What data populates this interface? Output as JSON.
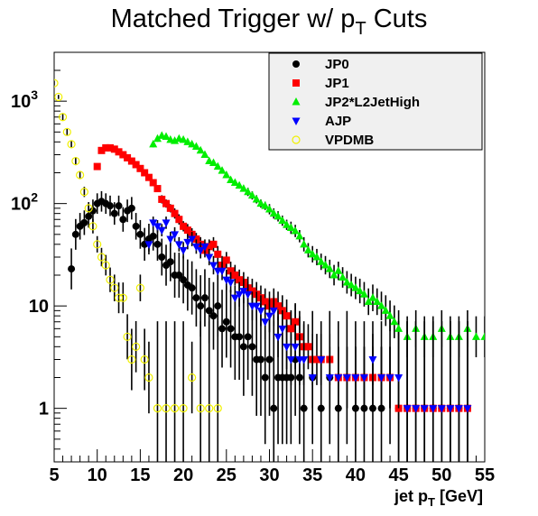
{
  "chart_data": {
    "type": "scatter",
    "title": "Matched Trigger w/ p",
    "title_sub": "T",
    "title_suffix": " Cuts",
    "xlabel": "jet p",
    "xlabel_sub": "T",
    "xlabel_suffix": " [GeV]",
    "ylabel": "",
    "xlim": [
      5,
      55
    ],
    "ylim": [
      0.3,
      3000
    ],
    "yscale": "log",
    "grid": false,
    "legend_position": "top-right",
    "x_ticks": [
      5,
      10,
      15,
      20,
      25,
      30,
      35,
      40,
      45,
      50,
      55
    ],
    "y_ticks": [
      {
        "value": 1,
        "base": "1",
        "exp": ""
      },
      {
        "value": 10,
        "base": "10",
        "exp": ""
      },
      {
        "value": 100,
        "base": "10",
        "exp": "2"
      },
      {
        "value": 1000,
        "base": "10",
        "exp": "3"
      }
    ],
    "series": [
      {
        "name": "JP0",
        "color": "#000000",
        "marker": "circle",
        "x": [
          7,
          7.5,
          8,
          8.5,
          9,
          9.5,
          10,
          10.5,
          11,
          11.5,
          12,
          12.5,
          13,
          13.5,
          14,
          14.5,
          15,
          15.5,
          16,
          16.5,
          17,
          17.5,
          18,
          18.5,
          19,
          19.5,
          20,
          20.5,
          21,
          21.5,
          22,
          22.5,
          23,
          23.5,
          24,
          24.5,
          25,
          25.5,
          26,
          26.5,
          27,
          27.5,
          28,
          28.5,
          29,
          29.5,
          30,
          30.5,
          31,
          31.5,
          32,
          32.5,
          33,
          33.5,
          34,
          35,
          36,
          37,
          38,
          39,
          40,
          41,
          42,
          43,
          44,
          45,
          46,
          47,
          48,
          49,
          50,
          51,
          52,
          53
        ],
        "y": [
          23,
          50,
          60,
          65,
          75,
          85,
          100,
          105,
          100,
          95,
          80,
          95,
          70,
          85,
          90,
          60,
          50,
          40,
          45,
          48,
          40,
          30,
          25,
          27,
          20,
          20,
          18,
          16,
          15,
          12,
          10,
          12,
          9,
          8,
          10,
          6,
          7,
          6,
          5,
          5,
          4,
          5,
          4,
          3,
          3,
          2,
          3,
          1,
          2,
          2,
          2,
          2,
          3,
          2,
          1,
          2,
          1,
          2,
          1,
          2,
          1,
          1,
          1,
          1,
          2,
          1,
          1,
          1,
          1,
          1,
          1,
          1,
          1,
          1
        ],
        "err": [
          0.2,
          0.15,
          0.13,
          0.12,
          0.11,
          0.11,
          0.1,
          0.1,
          0.1,
          0.1,
          0.11,
          0.1,
          0.12,
          0.11,
          0.11,
          0.13,
          0.14,
          0.16,
          0.15,
          0.14,
          0.16,
          0.18,
          0.2,
          0.19,
          0.22,
          0.22,
          0.23,
          0.25,
          0.26,
          0.28,
          0.3,
          0.28,
          0.32,
          0.33,
          0.3,
          0.38,
          0.35,
          0.38,
          0.42,
          0.42,
          0.48,
          0.42,
          0.48,
          0.55,
          0.55,
          0.65,
          0.55,
          0.85,
          0.65,
          0.65,
          0.65,
          0.65,
          0.55,
          0.65,
          0.85,
          0.65,
          0.85,
          0.65,
          0.85,
          0.65,
          0.85,
          0.85,
          0.85,
          0.85,
          0.65,
          0.85,
          0.85,
          0.85,
          0.85,
          0.85,
          0.85,
          0.85,
          0.85,
          0.85
        ]
      },
      {
        "name": "JP1",
        "color": "#ff0000",
        "marker": "square",
        "x": [
          10,
          10.5,
          11,
          11.5,
          12,
          12.5,
          13,
          13.5,
          14,
          14.5,
          15,
          15.5,
          16,
          16.5,
          17,
          17.5,
          18,
          18.5,
          19,
          19.5,
          20,
          20.5,
          21,
          21.5,
          22,
          22.5,
          23,
          23.5,
          24,
          24.5,
          25,
          25.5,
          26,
          26.5,
          27,
          27.5,
          28,
          28.5,
          29,
          29.5,
          30,
          30.5,
          31,
          31.5,
          32,
          32.5,
          33,
          33.5,
          34,
          34.5,
          35,
          35.5,
          36,
          37,
          38,
          39,
          40,
          41,
          42,
          43,
          44,
          45,
          46,
          47,
          48,
          49,
          50,
          51,
          52,
          53
        ],
        "y": [
          230,
          330,
          350,
          350,
          340,
          320,
          300,
          280,
          260,
          240,
          220,
          200,
          180,
          160,
          140,
          110,
          100,
          90,
          80,
          70,
          60,
          55,
          50,
          45,
          40,
          35,
          38,
          40,
          32,
          25,
          28,
          22,
          20,
          18,
          17,
          15,
          14,
          13,
          12,
          11,
          10,
          11,
          10,
          9,
          8,
          6,
          7,
          5,
          4,
          4,
          3,
          3,
          3,
          3,
          2,
          2,
          2,
          2,
          2,
          2,
          2,
          1,
          1,
          1,
          1,
          1,
          1,
          1,
          1,
          1
        ],
        "err": [
          0.03,
          0.02,
          0.02,
          0.02,
          0.02,
          0.02,
          0.02,
          0.02,
          0.02,
          0.03,
          0.03,
          0.03,
          0.03,
          0.03,
          0.03,
          0.04,
          0.04,
          0.04,
          0.05,
          0.05,
          0.05,
          0.06,
          0.06,
          0.06,
          0.07,
          0.07,
          0.07,
          0.07,
          0.08,
          0.09,
          0.08,
          0.09,
          0.1,
          0.1,
          0.1,
          0.11,
          0.12,
          0.12,
          0.12,
          0.13,
          0.14,
          0.13,
          0.14,
          0.15,
          0.16,
          0.18,
          0.17,
          0.2,
          0.22,
          0.22,
          0.25,
          0.25,
          0.25,
          0.25,
          0.3,
          0.3,
          0.3,
          0.3,
          0.3,
          0.3,
          0.3,
          0.85,
          0.85,
          0.85,
          0.85,
          0.85,
          0.85,
          0.85,
          0.85,
          0.85
        ]
      },
      {
        "name": "JP2*L2JetHigh",
        "color": "#00ee00",
        "marker": "triangle-up",
        "x": [
          16.5,
          17,
          17.5,
          18,
          18.5,
          19,
          19.5,
          20,
          20.5,
          21,
          21.5,
          22,
          22.5,
          23,
          23.5,
          24,
          24.5,
          25,
          25.5,
          26,
          26.5,
          27,
          27.5,
          28,
          28.5,
          29,
          29.5,
          30,
          30.5,
          31,
          31.5,
          32,
          32.5,
          33,
          33.5,
          34,
          34.5,
          35,
          35.5,
          36,
          36.5,
          37,
          37.5,
          38,
          38.5,
          39,
          39.5,
          40,
          40.5,
          41,
          41.5,
          42,
          42.5,
          43,
          43.5,
          44,
          44.5,
          45,
          46,
          47,
          48,
          49,
          50,
          51,
          52,
          53,
          54,
          55
        ],
        "y": [
          380,
          430,
          460,
          450,
          420,
          410,
          430,
          420,
          400,
          380,
          360,
          330,
          300,
          260,
          250,
          230,
          210,
          190,
          170,
          160,
          150,
          140,
          130,
          120,
          110,
          100,
          95,
          88,
          80,
          75,
          68,
          62,
          58,
          54,
          48,
          40,
          35,
          32,
          30,
          27,
          25,
          23,
          20,
          22,
          19,
          17,
          16,
          15,
          14,
          13,
          11,
          12,
          11,
          10,
          9,
          8,
          7,
          6,
          5,
          6,
          5,
          5,
          6,
          5,
          5,
          6,
          5,
          5
        ],
        "err": [
          0.03,
          0.03,
          0.02,
          0.02,
          0.02,
          0.02,
          0.02,
          0.02,
          0.02,
          0.02,
          0.02,
          0.02,
          0.02,
          0.03,
          0.03,
          0.03,
          0.03,
          0.03,
          0.03,
          0.03,
          0.03,
          0.03,
          0.04,
          0.04,
          0.04,
          0.04,
          0.04,
          0.05,
          0.05,
          0.05,
          0.05,
          0.05,
          0.06,
          0.06,
          0.06,
          0.07,
          0.07,
          0.08,
          0.08,
          0.08,
          0.09,
          0.09,
          0.1,
          0.09,
          0.1,
          0.11,
          0.11,
          0.11,
          0.12,
          0.12,
          0.13,
          0.13,
          0.13,
          0.14,
          0.15,
          0.15,
          0.16,
          0.18,
          0.2,
          0.18,
          0.2,
          0.2,
          0.18,
          0.2,
          0.2,
          0.18,
          0.2,
          0.2
        ]
      },
      {
        "name": "AJP",
        "color": "#0000ff",
        "marker": "triangle-down",
        "x": [
          16,
          16.5,
          17,
          17.5,
          18,
          18.5,
          19,
          19.5,
          20,
          20.5,
          21,
          21.5,
          22,
          22.5,
          23,
          23.5,
          24,
          24.5,
          25,
          25.5,
          26,
          26.5,
          27,
          27.5,
          28,
          28.5,
          29,
          29.5,
          30,
          30.5,
          31,
          31.5,
          32,
          32.5,
          33,
          33.5,
          34,
          35,
          36,
          37,
          38,
          39,
          40,
          41,
          42,
          43,
          44,
          45,
          46,
          47,
          48,
          49,
          50,
          51,
          52,
          53
        ],
        "y": [
          40,
          65,
          60,
          55,
          65,
          45,
          50,
          40,
          35,
          42,
          45,
          38,
          35,
          38,
          30,
          25,
          22,
          22,
          18,
          17,
          12,
          13,
          14,
          13,
          10,
          10,
          9,
          7,
          8,
          9,
          5,
          6,
          4,
          3,
          4,
          3,
          3,
          2,
          3,
          2,
          2,
          2,
          2,
          2,
          3,
          2,
          2,
          2,
          1,
          1,
          1,
          1,
          1,
          1,
          1,
          1
        ],
        "err": [
          0.07,
          0.06,
          0.06,
          0.06,
          0.06,
          0.07,
          0.07,
          0.07,
          0.08,
          0.07,
          0.07,
          0.07,
          0.08,
          0.07,
          0.08,
          0.09,
          0.09,
          0.09,
          0.1,
          0.1,
          0.12,
          0.12,
          0.12,
          0.12,
          0.14,
          0.14,
          0.15,
          0.17,
          0.16,
          0.15,
          0.2,
          0.18,
          0.22,
          0.25,
          0.22,
          0.25,
          0.25,
          0.3,
          0.25,
          0.3,
          0.3,
          0.3,
          0.3,
          0.3,
          0.25,
          0.3,
          0.3,
          0.3,
          0.85,
          0.85,
          0.85,
          0.85,
          0.85,
          0.85,
          0.85,
          0.85
        ]
      },
      {
        "name": "VPDMB",
        "color": "#f0f000",
        "marker": "open-circle",
        "x": [
          5,
          5.5,
          6,
          6.5,
          7,
          7.5,
          8,
          8.5,
          9,
          9.5,
          10,
          10.5,
          11,
          11.5,
          12,
          12.5,
          13,
          13.5,
          14,
          14.5,
          15,
          15.5,
          16,
          17,
          18,
          19,
          20,
          21,
          22,
          23,
          24
        ],
        "y": [
          1500,
          1100,
          700,
          500,
          380,
          260,
          190,
          130,
          90,
          60,
          40,
          30,
          25,
          18,
          15,
          12,
          12,
          5,
          3,
          4,
          15,
          3,
          2,
          1,
          1,
          1,
          1,
          2,
          1,
          1,
          1
        ],
        "err": [
          0.02,
          0.02,
          0.03,
          0.03,
          0.03,
          0.04,
          0.04,
          0.05,
          0.06,
          0.07,
          0.08,
          0.09,
          0.1,
          0.12,
          0.13,
          0.15,
          0.15,
          0.22,
          0.3,
          0.25,
          0.13,
          0.3,
          0.35,
          0.85,
          0.85,
          0.85,
          0.85,
          0.35,
          0.85,
          0.85,
          0.85
        ]
      }
    ]
  }
}
